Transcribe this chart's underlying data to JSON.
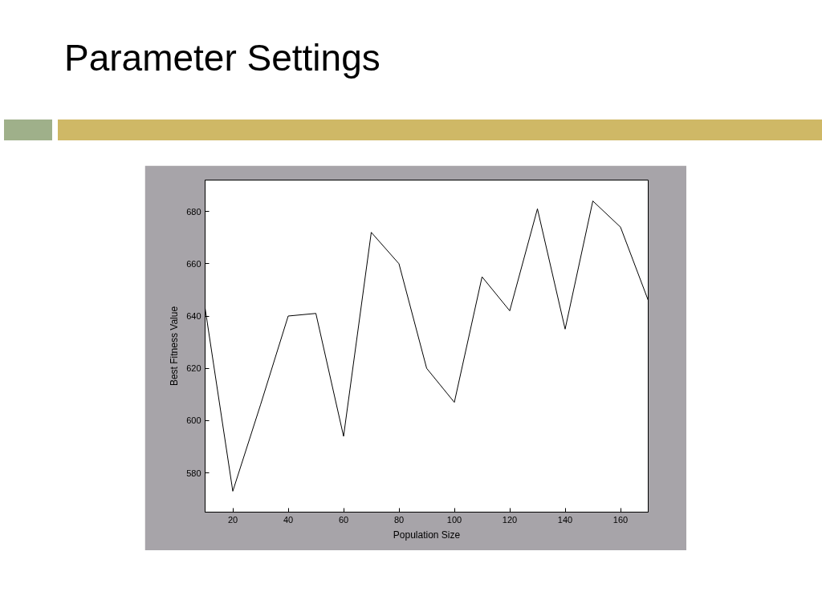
{
  "chart_data": {
    "type": "line",
    "title": "Parameter Settings",
    "xlabel": "Population Size",
    "ylabel": "Best Fitness Value",
    "x": [
      10,
      20,
      30,
      40,
      50,
      60,
      70,
      80,
      90,
      100,
      110,
      120,
      130,
      140,
      150,
      160,
      170
    ],
    "series": [
      {
        "color": "#000000",
        "values": [
          643,
          573,
          606,
          640,
          641,
          594,
          672,
          660,
          620,
          607,
          655,
          642,
          681,
          635,
          684,
          674,
          646
        ]
      }
    ],
    "xlim": [
      10,
      170
    ],
    "xticks": [
      20,
      40,
      60,
      80,
      100,
      120,
      140,
      160
    ],
    "ylim": [
      565,
      692
    ],
    "yticks": [
      580,
      600,
      620,
      640,
      660,
      680
    ],
    "grid": false,
    "marker": "none",
    "line_style": "solid"
  }
}
